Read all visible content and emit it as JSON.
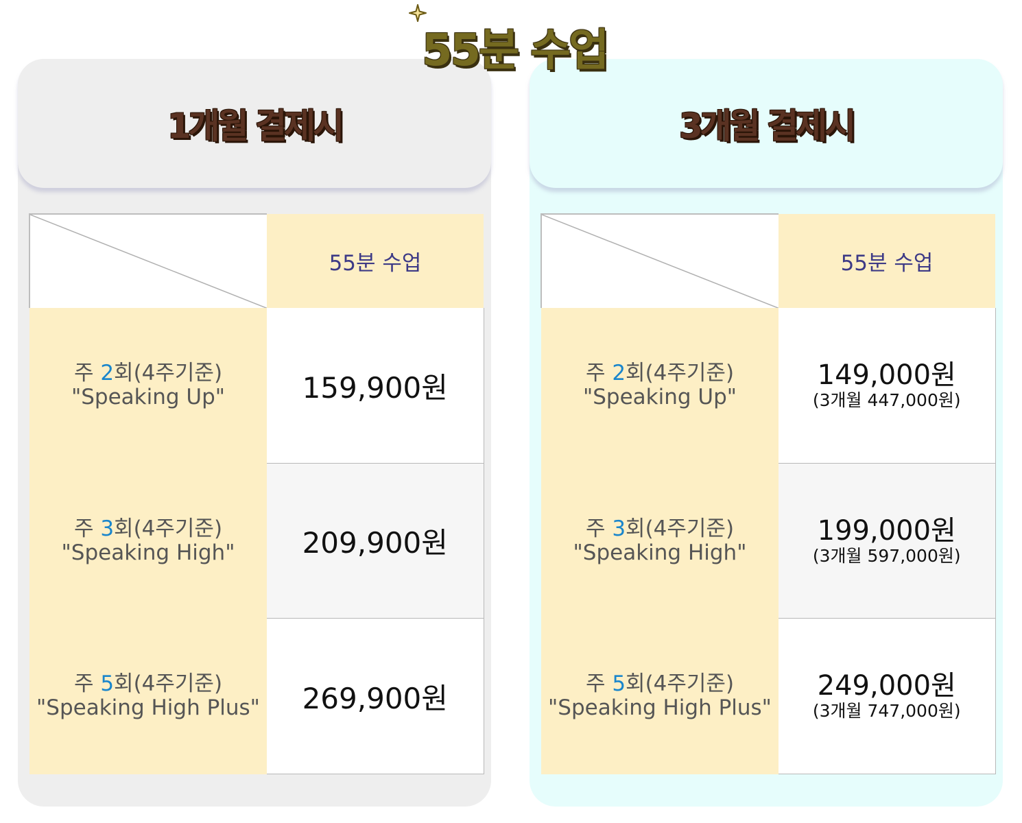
{
  "title": "55분 수업",
  "colors": {
    "title": "#756a20",
    "header_text": "#5a3222",
    "label_bg": "#fdefc5",
    "accent_number": "#1a86cc",
    "column_header_text": "#3d3a86"
  },
  "plans": [
    {
      "heading": "1개월 결제시",
      "column_header": "55분 수업",
      "rows": [
        {
          "label_prefix": "주 ",
          "label_num": "2",
          "label_suffix": "회(4주기준)",
          "name": "\"Speaking Up\"",
          "price": "159,900원"
        },
        {
          "label_prefix": "주 ",
          "label_num": "3",
          "label_suffix": "회(4주기준)",
          "name": "\"Speaking High\"",
          "price": "209,900원"
        },
        {
          "label_prefix": "주 ",
          "label_num": "5",
          "label_suffix": "회(4주기준)",
          "name": "\"Speaking High Plus\"",
          "price": "269,900원"
        }
      ]
    },
    {
      "heading": "3개월 결제시",
      "column_header": "55분 수업",
      "rows": [
        {
          "label_prefix": "주 ",
          "label_num": "2",
          "label_suffix": "회(4주기준)",
          "name": "\"Speaking Up\"",
          "price": "149,000원",
          "total": "(3개월 447,000원)"
        },
        {
          "label_prefix": "주 ",
          "label_num": "3",
          "label_suffix": "회(4주기준)",
          "name": "\"Speaking High\"",
          "price": "199,000원",
          "total": "(3개월 597,000원)"
        },
        {
          "label_prefix": "주 ",
          "label_num": "5",
          "label_suffix": "회(4주기준)",
          "name": "\"Speaking High Plus\"",
          "price": "249,000원",
          "total": "(3개월 747,000원)"
        }
      ]
    }
  ]
}
